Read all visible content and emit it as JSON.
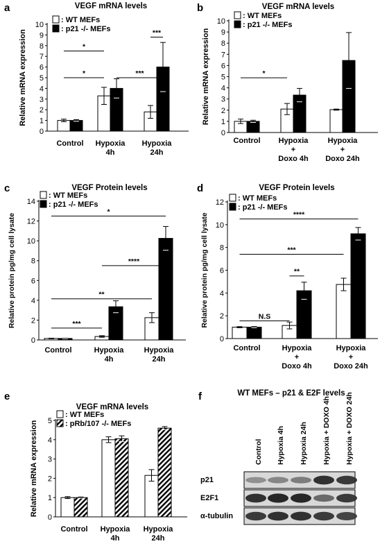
{
  "chart_data": [
    {
      "panel": "a",
      "type": "bar",
      "title": "VEGF mRNA levels",
      "ylabel": "Relative mRNA expression",
      "ylim": [
        0,
        10
      ],
      "yticks": [
        "0",
        "1",
        "2",
        "3",
        "4",
        "5",
        "6",
        "7",
        "8",
        "9",
        "10"
      ],
      "categories": [
        [
          "Control"
        ],
        [
          "Hypoxia",
          "4h"
        ],
        [
          "Hypoxia",
          "24h"
        ]
      ],
      "legend": [
        "WT MEFs",
        "p21 -/- MEFs"
      ],
      "series": [
        {
          "name": "WT MEFs",
          "values": [
            1.0,
            3.3,
            1.8
          ],
          "errors": [
            0.12,
            0.8,
            0.6
          ]
        },
        {
          "name": "p21 -/- MEFs",
          "values": [
            1.0,
            4.0,
            6.0
          ],
          "errors": [
            0.08,
            0.9,
            2.3
          ]
        }
      ],
      "annotations": [
        {
          "label": "*",
          "from": [
            0,
            0
          ],
          "to": [
            1,
            0
          ],
          "y": 7.5
        },
        {
          "label": "*",
          "from": [
            0,
            0
          ],
          "to": [
            1,
            0
          ],
          "y": 5.0
        },
        {
          "label": "***",
          "from": [
            1,
            1
          ],
          "to": [
            2,
            1
          ],
          "y": 5.0
        },
        {
          "label": "***",
          "from": [
            2,
            0
          ],
          "to": [
            2,
            1
          ],
          "y": 8.8
        }
      ]
    },
    {
      "panel": "b",
      "type": "bar",
      "title": "VEGF mRNA levels",
      "ylabel": "Relative mRNA expression",
      "ylim": [
        0,
        10
      ],
      "yticks": [
        "0",
        "1",
        "2",
        "3",
        "4",
        "5",
        "6",
        "7",
        "8",
        "9",
        "10"
      ],
      "categories": [
        [
          "Control"
        ],
        [
          "Hypoxia",
          "+",
          "Doxo 4h"
        ],
        [
          "Hypoxia",
          "+",
          "Doxo 24h"
        ]
      ],
      "legend": [
        "WT MEFs",
        "p21 -/- MEFs"
      ],
      "series": [
        {
          "name": "WT MEFs",
          "values": [
            1.0,
            2.1,
            2.05
          ],
          "errors": [
            0.2,
            0.5,
            0.05
          ]
        },
        {
          "name": "p21 -/- MEFs",
          "values": [
            1.0,
            3.35,
            6.45
          ],
          "errors": [
            0.1,
            0.6,
            2.5
          ]
        }
      ],
      "annotations": [
        {
          "label": "*",
          "from": [
            0,
            0
          ],
          "to": [
            1,
            0
          ],
          "y": 4.9
        }
      ]
    },
    {
      "panel": "c",
      "type": "bar",
      "title": "VEGF Protein levels",
      "ylabel": "Relative protein pg/mg cell lysate",
      "ylim": [
        0,
        14
      ],
      "yticks": [
        "0",
        "2",
        "4",
        "6",
        "8",
        "10",
        "12",
        "14"
      ],
      "categories": [
        [
          "Control"
        ],
        [
          "Hypoxia",
          "4h"
        ],
        [
          "Hypoxia",
          "24h"
        ]
      ],
      "legend": [
        "WT MEFs",
        "p21 -/- MEFs"
      ],
      "series": [
        {
          "name": "WT MEFs",
          "values": [
            0.15,
            0.35,
            2.25
          ],
          "errors": [
            0.03,
            0.08,
            0.5
          ]
        },
        {
          "name": "p21 -/- MEFs",
          "values": [
            0.15,
            3.35,
            10.25
          ],
          "errors": [
            0.03,
            0.6,
            1.2
          ]
        }
      ],
      "annotations": [
        {
          "label": "*",
          "from": [
            0,
            0
          ],
          "to": [
            2,
            1
          ],
          "y": 12.5
        },
        {
          "label": "**",
          "from": [
            0,
            0
          ],
          "to": [
            2,
            0
          ],
          "y": 4.15
        },
        {
          "label": "****",
          "from": [
            1,
            0
          ],
          "to": [
            2,
            1
          ],
          "y": 7.5
        },
        {
          "label": "***",
          "from": [
            0,
            0
          ],
          "to": [
            1,
            0
          ],
          "y": 1.2
        }
      ]
    },
    {
      "panel": "d",
      "type": "bar",
      "title": "VEGF Protein levels",
      "ylabel": "Relative protein pg/mg cell lysate",
      "ylim": [
        0,
        12
      ],
      "yticks": [
        "0",
        "2",
        "4",
        "6",
        "8",
        "10",
        "12"
      ],
      "categories": [
        [
          "Control"
        ],
        [
          "Hypoxia",
          "+",
          "Doxo 4h"
        ],
        [
          "Hypoxia",
          "+",
          "Doxo 24h"
        ]
      ],
      "legend": [
        "WT MEFs",
        "p21 -/- MEFs"
      ],
      "series": [
        {
          "name": "WT MEFs",
          "values": [
            1.0,
            1.15,
            4.75
          ],
          "errors": [
            0.05,
            0.3,
            0.55
          ]
        },
        {
          "name": "p21 -/- MEFs",
          "values": [
            1.0,
            4.2,
            9.2
          ],
          "errors": [
            0.05,
            0.75,
            0.55
          ]
        }
      ],
      "annotations": [
        {
          "label": "****",
          "from": [
            0,
            0
          ],
          "to": [
            2,
            1
          ],
          "y": 10.5
        },
        {
          "label": "***",
          "from": [
            0,
            0
          ],
          "to": [
            2,
            0
          ],
          "y": 7.4
        },
        {
          "label": "**",
          "from": [
            1,
            0
          ],
          "to": [
            1,
            1
          ],
          "y": 5.5
        },
        {
          "label": "N.S",
          "from": [
            0,
            0
          ],
          "to": [
            1,
            0
          ],
          "y": 1.55
        }
      ]
    },
    {
      "panel": "e",
      "type": "bar",
      "title": "VEGF mRNA levels",
      "ylabel": "Relative mRNA expression",
      "ylim": [
        0,
        5
      ],
      "yticks": [
        "0",
        "1",
        "2",
        "3",
        "4",
        "5"
      ],
      "categories": [
        [
          "Control"
        ],
        [
          "Hypoxia",
          "4h"
        ],
        [
          "Hypoxia",
          "24h"
        ]
      ],
      "legend": [
        "WT MEFs",
        "pRb/107 -/-  MEFs"
      ],
      "series": [
        {
          "name": "WT MEFs",
          "values": [
            1.0,
            4.0,
            2.15
          ],
          "errors": [
            0.05,
            0.15,
            0.3
          ]
        },
        {
          "name": "pRb/107 -/-  MEFs",
          "values": [
            1.0,
            4.05,
            4.6
          ],
          "errors": [
            0.03,
            0.15,
            0.08
          ]
        }
      ],
      "annotations": []
    }
  ],
  "panel_letters": [
    "a",
    "b",
    "c",
    "d",
    "e",
    "f"
  ],
  "blot": {
    "panel": "f",
    "title": "WT MEFs – p21 & E2F levels",
    "lanes": [
      "Control",
      "Hypoxia 4h",
      "Hypoxia 24h",
      "Hypoxia + DOXO 4h",
      "Hypoxia + DOXO 24h"
    ],
    "rows": [
      {
        "label": "p21",
        "intensity": [
          0.35,
          0.4,
          0.45,
          0.85,
          0.8
        ]
      },
      {
        "label": "E2F1",
        "intensity": [
          0.85,
          0.9,
          0.9,
          0.55,
          0.8
        ]
      },
      {
        "label": "α-tubulin",
        "intensity": [
          0.8,
          0.85,
          0.85,
          0.8,
          0.75
        ]
      }
    ]
  }
}
